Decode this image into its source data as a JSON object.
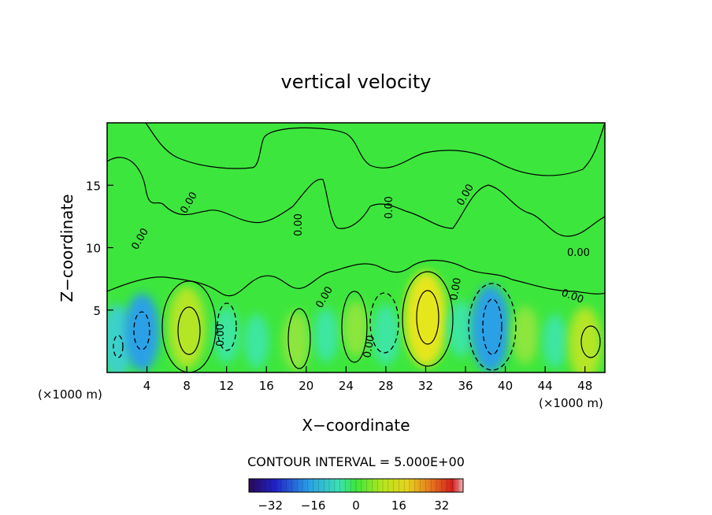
{
  "chart_data": {
    "type": "heatmap",
    "title": "vertical velocity",
    "xlabel": "X−coordinate",
    "ylabel": "Z−coordinate",
    "x_unit_left": "(×1000 m)",
    "x_unit_right": "(×1000 m)",
    "xlim": [
      0,
      50
    ],
    "ylim": [
      0,
      20
    ],
    "xticks": [
      4,
      8,
      12,
      16,
      20,
      24,
      28,
      32,
      36,
      40,
      44,
      48
    ],
    "xtick_labels": [
      "4",
      "8",
      "12",
      "16",
      "20",
      "24",
      "28",
      "32",
      "36",
      "40",
      "44",
      "48"
    ],
    "yticks": [
      5,
      10,
      15
    ],
    "ytick_labels": [
      "5",
      "10",
      "15"
    ],
    "contour_interval_text": "CONTOUR INTERVAL = 5.000E+00",
    "contour_labels": [
      "0.00",
      "0.00",
      "0.00",
      "0.00",
      "0.00",
      "0.00",
      "0.00",
      "0.00",
      "0.00",
      "0.00",
      "0.00"
    ],
    "colorbar": {
      "range": [
        -40,
        40
      ],
      "ticks": [
        -32,
        -16,
        0,
        16,
        32
      ],
      "tick_labels": [
        "−32",
        "−16",
        "0",
        "16",
        "32"
      ]
    },
    "cells": [
      {
        "x": 1,
        "z": 2.5,
        "value": -12
      },
      {
        "x": 3.5,
        "z": 3.2,
        "value": -14
      },
      {
        "x": 8,
        "z": 3.6,
        "value": 16
      },
      {
        "x": 12,
        "z": 3.0,
        "value": -4
      },
      {
        "x": 15,
        "z": 2.5,
        "value": -3
      },
      {
        "x": 19,
        "z": 2.5,
        "value": 6
      },
      {
        "x": 22,
        "z": 3.0,
        "value": -3
      },
      {
        "x": 25,
        "z": 3.5,
        "value": 4
      },
      {
        "x": 28,
        "z": 3.0,
        "value": -6
      },
      {
        "x": 32,
        "z": 4.3,
        "value": 22
      },
      {
        "x": 35.5,
        "z": 3.5,
        "value": -4
      },
      {
        "x": 38.5,
        "z": 3.5,
        "value": -18
      },
      {
        "x": 42,
        "z": 3.0,
        "value": 5
      },
      {
        "x": 45,
        "z": 2.5,
        "value": -3
      },
      {
        "x": 48,
        "z": 2.3,
        "value": 12
      }
    ]
  },
  "colors": {
    "background": "#ffffff",
    "field_base": "#3de63d",
    "positive": "#c8e600",
    "negative": "#3cd2b4"
  }
}
